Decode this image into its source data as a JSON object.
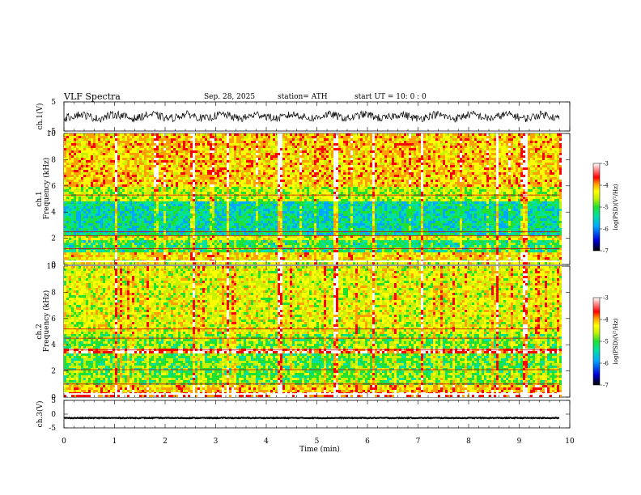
{
  "header": {
    "title": "VLF  Spectra",
    "date": "Sep. 28, 2025",
    "station": "station= ATH",
    "start_ut": "start  UT  =    10: 0   : 0"
  },
  "chart_data": {
    "type": "heatmap",
    "xlabel": "Time  (min)",
    "xlim": [
      0,
      10
    ],
    "xticks": [
      0,
      1,
      2,
      3,
      4,
      5,
      6,
      7,
      8,
      9,
      10
    ],
    "data_end_min": 9.8,
    "panels": [
      {
        "id": "ch1-waveform",
        "kind": "line",
        "ylabel": "ch.1(V)",
        "ylim": [
          -5,
          5
        ],
        "yticks": [
          5,
          -5
        ],
        "mean": 0,
        "amplitude": 2.2
      },
      {
        "id": "ch1-spectrogram",
        "kind": "spectrogram",
        "ylabel_top": "ch.1",
        "ylabel": "Frequency  (kHz)",
        "ylim": [
          0,
          10
        ],
        "yticks": [
          0,
          2,
          4,
          6,
          8,
          10
        ],
        "bands": [
          {
            "from": 0.0,
            "to": 0.5,
            "level": -4.6
          },
          {
            "from": 0.5,
            "to": 1.0,
            "level": -4.3
          },
          {
            "from": 1.0,
            "to": 2.0,
            "level": -5.3
          },
          {
            "from": 2.0,
            "to": 2.4,
            "level": -4.6
          },
          {
            "from": 2.4,
            "to": 5.0,
            "level": -5.6
          },
          {
            "from": 5.0,
            "to": 6.0,
            "level": -4.8
          },
          {
            "from": 6.0,
            "to": 10.0,
            "level": -4.2
          }
        ],
        "lines_khz": [
          1.2,
          2.2,
          2.5,
          5.3
        ]
      },
      {
        "id": "ch2-spectrogram",
        "kind": "spectrogram",
        "ylabel_top": "ch.2",
        "ylabel": "Frequency  (kHz)",
        "ylim": [
          0,
          10
        ],
        "yticks": [
          0,
          2,
          4,
          6,
          8,
          10
        ],
        "bands": [
          {
            "from": 0.0,
            "to": 0.5,
            "level": -3.5
          },
          {
            "from": 0.5,
            "to": 1.0,
            "level": -4.2
          },
          {
            "from": 1.0,
            "to": 2.0,
            "level": -5.0
          },
          {
            "from": 2.0,
            "to": 3.5,
            "level": -5.1
          },
          {
            "from": 3.5,
            "to": 3.8,
            "level": -3.6
          },
          {
            "from": 3.8,
            "to": 5.0,
            "level": -5.0
          },
          {
            "from": 5.0,
            "to": 10.0,
            "level": -4.6
          }
        ],
        "lines_khz": [
          1.0,
          2.1,
          3.6,
          4.5,
          5.2
        ]
      },
      {
        "id": "ch3-waveform",
        "kind": "line",
        "ylabel": "ch.3(V)",
        "ylim": [
          -5,
          5
        ],
        "yticks": [
          5,
          0,
          -5
        ],
        "mean": -1.4,
        "amplitude": 0.3
      }
    ],
    "colorbars": [
      {
        "id": "colorbar-ch1",
        "label": "log(PSD)(V²/Hz)",
        "range": [
          -7,
          -3
        ],
        "ticks": [
          -3,
          -4,
          -5,
          -6,
          -7
        ]
      },
      {
        "id": "colorbar-ch2",
        "label": "log(PSD)(V²/Hz)",
        "range": [
          -7,
          -3
        ],
        "ticks": [
          -3,
          -4,
          -5,
          -6,
          -7
        ]
      }
    ],
    "colormap": [
      "#000000",
      "#0000d8",
      "#00a8ff",
      "#00e0a0",
      "#20e030",
      "#c8f000",
      "#ffff00",
      "#ffa000",
      "#ff0000",
      "#ffffff"
    ],
    "vertical_events_min": [
      1.0,
      2.55,
      3.2,
      4.25,
      5.35,
      6.1,
      7.05,
      8.55,
      9.1
    ]
  }
}
